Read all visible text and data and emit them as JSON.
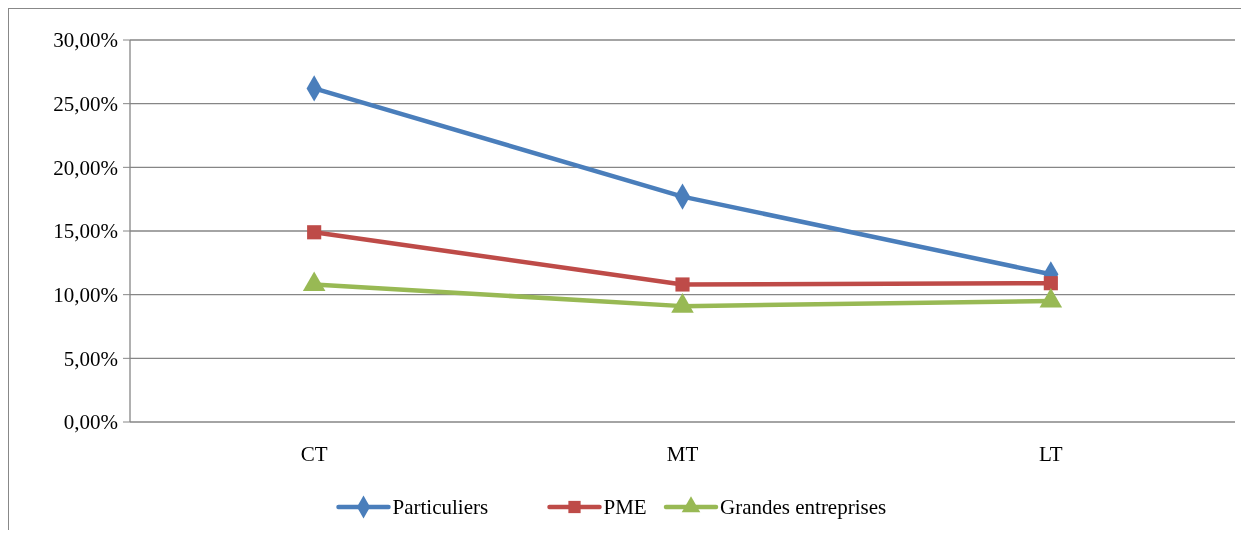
{
  "chart_data": {
    "type": "line",
    "categories": [
      "CT",
      "MT",
      "LT"
    ],
    "series": [
      {
        "name": "Particuliers",
        "color": "#4a7ebb",
        "marker": "diamond",
        "values": [
          26.2,
          17.7,
          11.6
        ]
      },
      {
        "name": "PME",
        "color": "#be4b48",
        "marker": "square",
        "values": [
          14.9,
          10.8,
          10.9
        ]
      },
      {
        "name": "Grandes entreprises",
        "color": "#98b954",
        "marker": "triangle",
        "values": [
          10.8,
          9.1,
          9.5
        ]
      }
    ],
    "ylim": [
      0,
      30
    ],
    "yticks": [
      {
        "value": 0,
        "label": "0,00%"
      },
      {
        "value": 5,
        "label": "5,00%"
      },
      {
        "value": 10,
        "label": "10,00%"
      },
      {
        "value": 15,
        "label": "15,00%"
      },
      {
        "value": 20,
        "label": "20,00%"
      },
      {
        "value": 25,
        "label": "25,00%"
      },
      {
        "value": 30,
        "label": "30,00%"
      }
    ],
    "grid": "y",
    "legend": "bottom",
    "line_style": "solid"
  }
}
